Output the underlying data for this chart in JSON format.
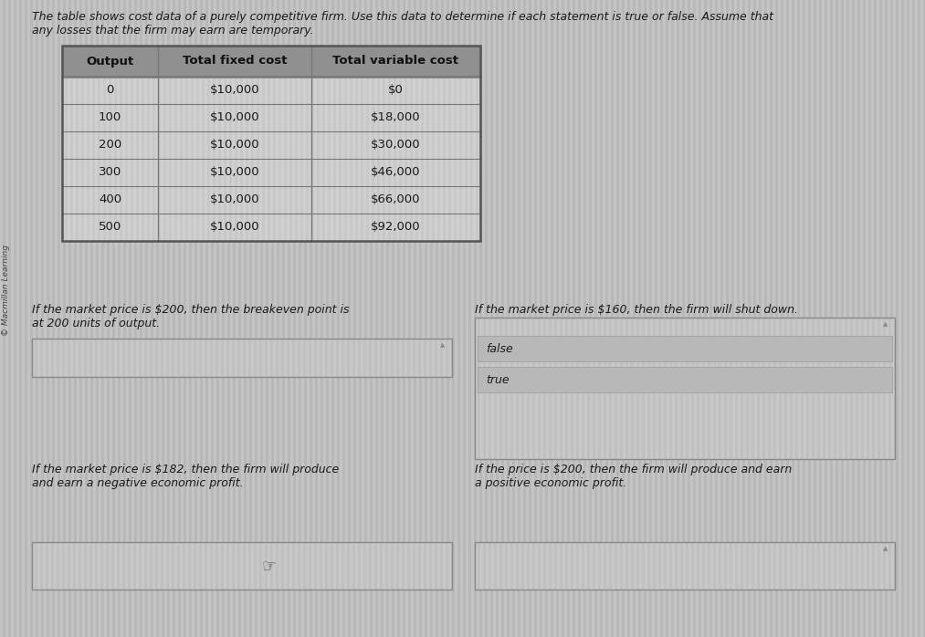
{
  "title_text1": "The table shows cost data of a purely competitive firm. Use this data to determine if each statement is true or false. Assume that",
  "title_text2": "any losses that the firm may earn are temporary.",
  "sidebar_text": "© Macmillan Learning",
  "table_headers": [
    "Output",
    "Total fixed cost",
    "Total variable cost"
  ],
  "table_rows": [
    [
      "0",
      "$10,000",
      "$0"
    ],
    [
      "100",
      "$10,000",
      "$18,000"
    ],
    [
      "200",
      "$10,000",
      "$30,000"
    ],
    [
      "300",
      "$10,000",
      "$46,000"
    ],
    [
      "400",
      "$10,000",
      "$66,000"
    ],
    [
      "500",
      "$10,000",
      "$92,000"
    ]
  ],
  "statement1_text": "If the market price is $200, then the breakeven point is\nat 200 units of output.",
  "statement2_text": "If the market price is $160, then the firm will shut down.",
  "statement3_text": "If the market price is $182, then the firm will produce\nand earn a negative economic profit.",
  "statement4_text": "If the price is $200, then the firm will produce and earn\na positive economic profit.",
  "answer2_false": "false",
  "answer2_true": "true",
  "bg_color": "#b8b8b8",
  "stripe_color": "#c4c4c4",
  "table_cell_bg": "#c8c8c8",
  "table_header_bg": "#909090",
  "table_border": "#555555",
  "table_line": "#777777",
  "box_bg": "#c0c0c0",
  "box_border": "#888888",
  "answer_row_bg": "#b8b8b8",
  "answer_row_border": "#999999",
  "text_color": "#1a1a1a",
  "font_size_title": 9.0,
  "font_size_table_hdr": 9.5,
  "font_size_table_data": 9.5,
  "font_size_statement": 9.0,
  "font_size_answer": 9.0,
  "font_size_sidebar": 6.5
}
